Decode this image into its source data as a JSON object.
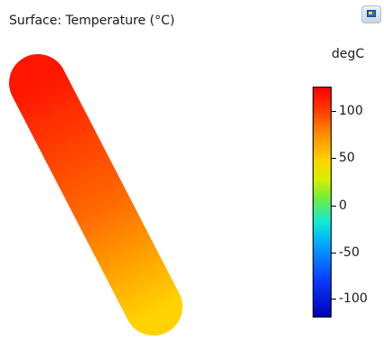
{
  "plot": {
    "title": "Surface: Temperature (°C)"
  },
  "colorbar": {
    "unit": "degC",
    "ticks": [
      "100",
      "50",
      "0",
      "-50",
      "-100"
    ]
  },
  "toolbar": {
    "icon": "image-icon"
  },
  "colors": {
    "surface_top": "#ff1600",
    "surface_bottom": "#ffd200",
    "colorbar_max": "#ff0000",
    "colorbar_min": "#0000b4"
  }
}
